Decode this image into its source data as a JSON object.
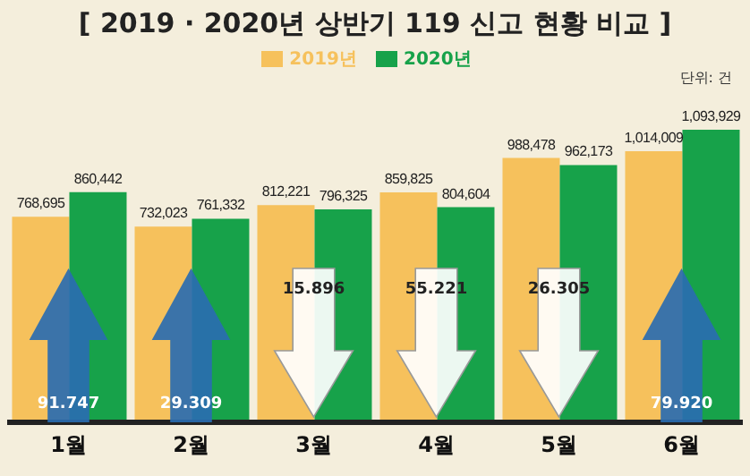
{
  "chart_data": {
    "type": "bar",
    "title": "[ 2019 · 2020년 상반기 119 신고 현황 비교 ]",
    "categories": [
      "1월",
      "2월",
      "3월",
      "4월",
      "5월",
      "6월"
    ],
    "series": [
      {
        "name": "2019년",
        "color": "#f6c15c",
        "values": [
          768695,
          732023,
          812221,
          859825,
          988478,
          1014009
        ],
        "value_labels": [
          "768,695",
          "732,023",
          "812,221",
          "859,825",
          "988,478",
          "1,014,009"
        ]
      },
      {
        "name": "2020년",
        "color": "#17a24a",
        "values": [
          860442,
          761332,
          796325,
          804604,
          962173,
          1093929
        ],
        "value_labels": [
          "860,442",
          "761,332",
          "796,325",
          "804,604",
          "962,173",
          "1,093,929"
        ]
      }
    ],
    "tick_labels": "x",
    "legend": "top",
    "annotations": [
      "91.747",
      "29.309",
      "15.896",
      "55.221",
      "26.305",
      "79.920",
      "단위: 건"
    ]
  }
}
